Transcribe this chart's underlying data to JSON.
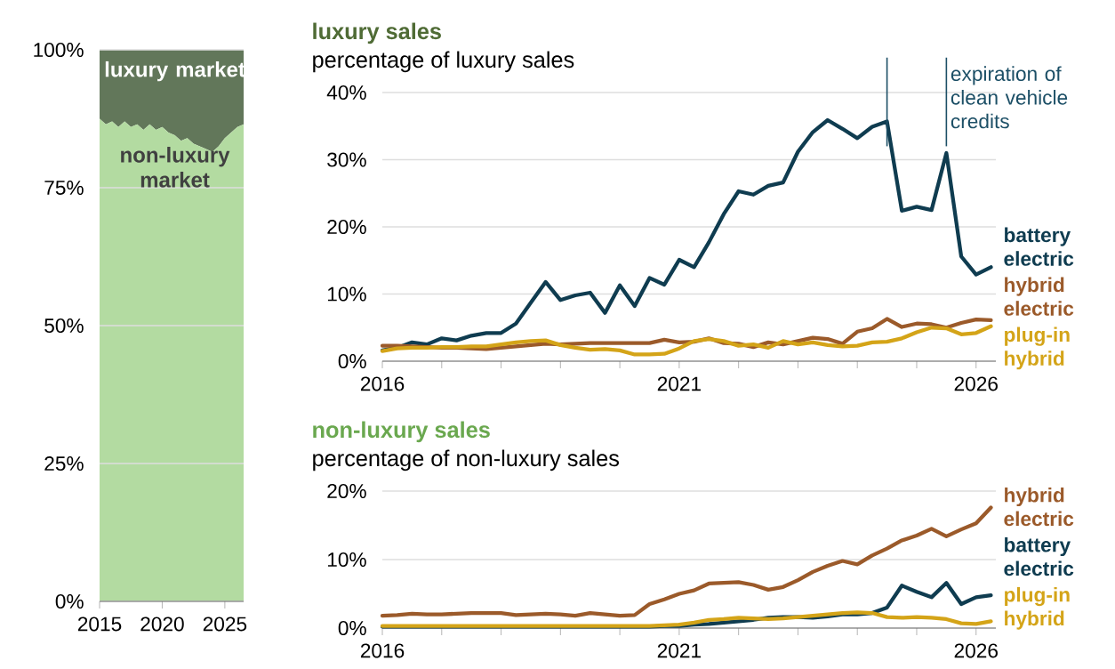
{
  "chart_data": [
    {
      "type": "area",
      "stacked": true,
      "x": [
        "2015-01",
        "2015-07",
        "2016-01",
        "2016-07",
        "2017-01",
        "2017-07",
        "2018-01",
        "2018-07",
        "2019-01",
        "2019-07",
        "2020-01",
        "2020-07",
        "2021-01",
        "2021-07",
        "2022-01",
        "2022-07",
        "2023-01",
        "2023-07",
        "2024-01",
        "2024-07",
        "2025-01",
        "2025-07",
        "2026-01",
        "2026-07"
      ],
      "series": [
        {
          "name": "non-luxury market",
          "color": "#b3dba1",
          "values": [
            87.5,
            86.5,
            87,
            86,
            87,
            86,
            86.5,
            85.5,
            86.5,
            85.5,
            86,
            85,
            84.5,
            83.5,
            84,
            83,
            82.5,
            82,
            81.5,
            82.5,
            84,
            85,
            86,
            86.5
          ]
        },
        {
          "name": "luxury market",
          "color": "#62775a",
          "values": [
            12.5,
            13.5,
            13,
            14,
            13,
            14,
            13.5,
            14.5,
            13.5,
            14.5,
            14,
            15,
            15.5,
            16.5,
            16,
            17,
            17.5,
            18,
            18.5,
            17.5,
            16,
            15,
            14,
            13.5
          ]
        }
      ],
      "xlim": [
        "2015-01",
        "2026-07"
      ],
      "xticks": [
        "2015",
        "2020",
        "2025"
      ],
      "ylim": [
        0,
        100
      ],
      "yticks": [
        {
          "value": 0,
          "label": "0%"
        },
        {
          "value": 25,
          "label": "25%"
        },
        {
          "value": 50,
          "label": "50%"
        },
        {
          "value": 75,
          "label": "75%"
        },
        {
          "value": 100,
          "label": "100%"
        }
      ],
      "grid": "y"
    },
    {
      "type": "line",
      "title": "luxury sales",
      "subtitle": "percentage of luxury sales",
      "x": [
        "2016-01",
        "2016-04",
        "2016-07",
        "2016-10",
        "2017-01",
        "2017-04",
        "2017-07",
        "2017-10",
        "2018-01",
        "2018-04",
        "2018-07",
        "2018-10",
        "2019-01",
        "2019-04",
        "2019-07",
        "2019-10",
        "2020-01",
        "2020-04",
        "2020-07",
        "2020-10",
        "2021-01",
        "2021-04",
        "2021-07",
        "2021-10",
        "2022-01",
        "2022-04",
        "2022-07",
        "2022-10",
        "2023-01",
        "2023-04",
        "2023-07",
        "2023-10",
        "2024-01",
        "2024-04",
        "2024-07",
        "2024-10",
        "2025-01",
        "2025-04",
        "2025-07",
        "2025-10",
        "2026-01",
        "2026-04"
      ],
      "series": [
        {
          "name": "battery electric",
          "color": "#0f3c50",
          "values": [
            1.6,
            2.0,
            2.8,
            2.5,
            3.4,
            3.1,
            3.8,
            4.2,
            4.2,
            5.6,
            8.7,
            11.8,
            9.1,
            9.8,
            10.2,
            7.2,
            11.3,
            8.2,
            12.4,
            11.4,
            15.1,
            14.0,
            17.7,
            21.9,
            25.3,
            24.8,
            26.1,
            26.6,
            31.2,
            34.1,
            35.9,
            34.6,
            33.2,
            34.9,
            35.7,
            22.4,
            23.0,
            22.5,
            31.0,
            15.6,
            12.9,
            14.0
          ]
        },
        {
          "name": "hybrid electric",
          "color": "#9b5a2a",
          "values": [
            2.3,
            2.3,
            2.2,
            2.1,
            2.0,
            2.0,
            1.9,
            1.8,
            2.0,
            2.2,
            2.4,
            2.6,
            2.5,
            2.6,
            2.7,
            2.7,
            2.7,
            2.7,
            2.7,
            3.2,
            2.8,
            2.9,
            3.4,
            2.7,
            2.6,
            2.1,
            2.8,
            2.5,
            3.0,
            3.5,
            3.3,
            2.6,
            4.4,
            4.9,
            6.3,
            5.1,
            5.6,
            5.5,
            5.0,
            5.7,
            6.2,
            6.1
          ]
        },
        {
          "name": "plug-in hybrid",
          "color": "#d4a418",
          "values": [
            1.5,
            1.9,
            2.0,
            2.0,
            2.1,
            2.1,
            2.2,
            2.2,
            2.5,
            2.8,
            3.0,
            3.1,
            2.4,
            2.0,
            1.7,
            1.8,
            1.6,
            1.0,
            1.0,
            1.1,
            1.9,
            3.0,
            3.3,
            3.0,
            2.3,
            2.5,
            2.0,
            3.0,
            2.5,
            2.8,
            2.4,
            2.2,
            2.3,
            2.8,
            2.9,
            3.4,
            4.3,
            5.0,
            4.9,
            4.0,
            4.2,
            5.2
          ]
        }
      ],
      "xlim": [
        "2016-01",
        "2026-05"
      ],
      "xticks": [
        "2016",
        {
          "value": "2017",
          "label": null
        },
        {
          "value": "2018",
          "label": null
        },
        {
          "value": "2019",
          "label": null
        },
        {
          "value": "2020",
          "label": null
        },
        "2021",
        {
          "value": "2022",
          "label": null
        },
        {
          "value": "2023",
          "label": null
        },
        {
          "value": "2024",
          "label": null
        },
        {
          "value": "2025",
          "label": null
        },
        "2026"
      ],
      "ylim": [
        0,
        40
      ],
      "yticks": [
        {
          "value": 0,
          "label": "0%"
        },
        {
          "value": 10,
          "label": "10%"
        },
        {
          "value": 20,
          "label": "20%"
        },
        {
          "value": 30,
          "label": "30%"
        },
        {
          "value": 40,
          "label": "40%"
        }
      ],
      "grid": "y",
      "ref_lines": [
        {
          "axis": "x",
          "value": "2024-07",
          "color": "#1c4f66"
        },
        {
          "axis": "x",
          "value": "2025-07",
          "label": "expiration of clean vehicle credits",
          "color": "#1c4f66"
        }
      ]
    },
    {
      "type": "line",
      "title": "non-luxury sales",
      "subtitle": "percentage of non-luxury sales",
      "x": [
        "2016-01",
        "2016-04",
        "2016-07",
        "2016-10",
        "2017-01",
        "2017-04",
        "2017-07",
        "2017-10",
        "2018-01",
        "2018-04",
        "2018-07",
        "2018-10",
        "2019-01",
        "2019-04",
        "2019-07",
        "2019-10",
        "2020-01",
        "2020-04",
        "2020-07",
        "2020-10",
        "2021-01",
        "2021-04",
        "2021-07",
        "2021-10",
        "2022-01",
        "2022-04",
        "2022-07",
        "2022-10",
        "2023-01",
        "2023-04",
        "2023-07",
        "2023-10",
        "2024-01",
        "2024-04",
        "2024-07",
        "2024-10",
        "2025-01",
        "2025-04",
        "2025-07",
        "2025-10",
        "2026-01",
        "2026-04"
      ],
      "series": [
        {
          "name": "hybrid electric",
          "color": "#9b5a2a",
          "values": [
            1.8,
            1.9,
            2.1,
            2.0,
            2.0,
            2.1,
            2.2,
            2.2,
            2.2,
            1.9,
            2.0,
            2.1,
            2.0,
            1.8,
            2.2,
            2.0,
            1.8,
            1.9,
            3.5,
            4.2,
            5.0,
            5.5,
            6.5,
            6.6,
            6.7,
            6.3,
            5.6,
            6.0,
            7.0,
            8.2,
            9.1,
            9.8,
            9.3,
            10.6,
            11.6,
            12.8,
            13.5,
            14.5,
            13.4,
            14.4,
            15.3,
            17.6
          ]
        },
        {
          "name": "battery electric",
          "color": "#0f3c50",
          "values": [
            0.2,
            0.2,
            0.2,
            0.2,
            0.2,
            0.2,
            0.2,
            0.2,
            0.2,
            0.2,
            0.2,
            0.2,
            0.2,
            0.2,
            0.2,
            0.2,
            0.2,
            0.2,
            0.2,
            0.3,
            0.3,
            0.5,
            0.6,
            0.8,
            1.0,
            1.2,
            1.5,
            1.6,
            1.6,
            1.5,
            1.7,
            2.0,
            2.0,
            2.2,
            3.0,
            6.2,
            5.3,
            4.5,
            6.6,
            3.5,
            4.5,
            4.8
          ]
        },
        {
          "name": "plug-in hybrid",
          "color": "#d4a418",
          "values": [
            0.3,
            0.3,
            0.3,
            0.3,
            0.3,
            0.3,
            0.3,
            0.3,
            0.3,
            0.3,
            0.3,
            0.3,
            0.3,
            0.3,
            0.3,
            0.3,
            0.3,
            0.3,
            0.3,
            0.4,
            0.5,
            0.8,
            1.2,
            1.3,
            1.5,
            1.4,
            1.3,
            1.4,
            1.6,
            1.8,
            2.0,
            2.2,
            2.3,
            2.2,
            1.6,
            1.5,
            1.6,
            1.5,
            1.3,
            0.7,
            0.6,
            1.0
          ]
        }
      ],
      "xlim": [
        "2016-01",
        "2026-05"
      ],
      "xticks": [
        "2016",
        {
          "value": "2017",
          "label": null
        },
        {
          "value": "2018",
          "label": null
        },
        {
          "value": "2019",
          "label": null
        },
        {
          "value": "2020",
          "label": null
        },
        "2021",
        {
          "value": "2022",
          "label": null
        },
        {
          "value": "2023",
          "label": null
        },
        {
          "value": "2024",
          "label": null
        },
        {
          "value": "2025",
          "label": null
        },
        "2026"
      ],
      "ylim": [
        0,
        20
      ],
      "yticks": [
        {
          "value": 0,
          "label": "0%"
        },
        {
          "value": 10,
          "label": "10%"
        },
        {
          "value": 20,
          "label": "20%"
        }
      ],
      "grid": "y"
    }
  ]
}
